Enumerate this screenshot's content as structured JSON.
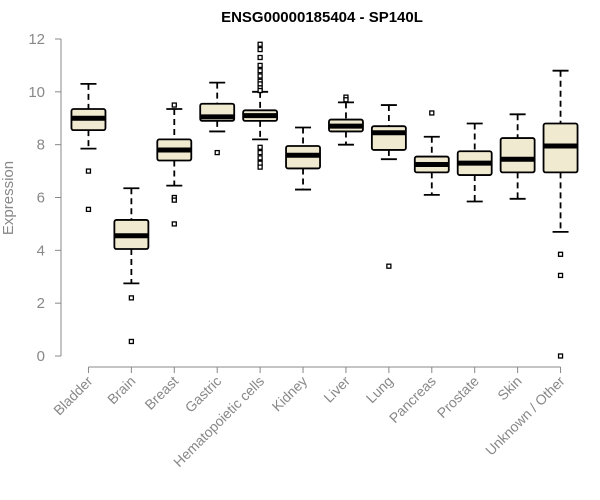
{
  "chart_data": {
    "type": "boxplot",
    "title": "ENSG00000185404 - SP140L",
    "xlabel": "",
    "ylabel": "Expression",
    "ylim": [
      0,
      12
    ],
    "yticks": [
      0,
      2,
      4,
      6,
      8,
      10,
      12
    ],
    "grid": false,
    "categories": [
      "Bladder",
      "Brain",
      "Breast",
      "Gastric",
      "Hematopoietic cells",
      "Kidney",
      "Liver",
      "Lung",
      "Pancreas",
      "Prostate",
      "Skin",
      "Unknown / Other"
    ],
    "box_fill": "#f0ead0",
    "series": [
      {
        "whisker_low": 7.85,
        "q1": 8.55,
        "median": 9.0,
        "q3": 9.35,
        "whisker_high": 10.3,
        "outliers": [
          7.0,
          5.55
        ]
      },
      {
        "whisker_low": 2.75,
        "q1": 4.05,
        "median": 4.55,
        "q3": 5.15,
        "whisker_high": 6.35,
        "outliers": [
          2.2,
          0.55
        ]
      },
      {
        "whisker_low": 6.45,
        "q1": 7.4,
        "median": 7.8,
        "q3": 8.2,
        "whisker_high": 9.35,
        "outliers": [
          9.5,
          6.0,
          5.9,
          5.0
        ]
      },
      {
        "whisker_low": 8.5,
        "q1": 8.9,
        "median": 9.05,
        "q3": 9.55,
        "whisker_high": 10.35,
        "outliers": [
          7.7
        ]
      },
      {
        "whisker_low": 8.2,
        "q1": 8.9,
        "median": 9.1,
        "q3": 9.3,
        "whisker_high": 10.0,
        "outliers": [
          11.8,
          11.6,
          11.3,
          11.0,
          10.8,
          10.6,
          10.4,
          10.3,
          10.15,
          10.05,
          7.9,
          7.7,
          7.5,
          7.3,
          7.15
        ]
      },
      {
        "whisker_low": 6.3,
        "q1": 7.1,
        "median": 7.6,
        "q3": 7.95,
        "whisker_high": 8.65,
        "outliers": []
      },
      {
        "whisker_low": 8.0,
        "q1": 8.5,
        "median": 8.7,
        "q3": 8.95,
        "whisker_high": 9.6,
        "outliers": [
          9.8,
          9.7
        ]
      },
      {
        "whisker_low": 7.45,
        "q1": 7.8,
        "median": 8.45,
        "q3": 8.7,
        "whisker_high": 9.5,
        "outliers": [
          3.4
        ]
      },
      {
        "whisker_low": 6.1,
        "q1": 6.95,
        "median": 7.25,
        "q3": 7.55,
        "whisker_high": 8.3,
        "outliers": [
          9.2
        ]
      },
      {
        "whisker_low": 5.85,
        "q1": 6.85,
        "median": 7.3,
        "q3": 7.75,
        "whisker_high": 8.8,
        "outliers": []
      },
      {
        "whisker_low": 5.95,
        "q1": 6.95,
        "median": 7.45,
        "q3": 8.25,
        "whisker_high": 9.15,
        "outliers": []
      },
      {
        "whisker_low": 4.7,
        "q1": 6.95,
        "median": 7.95,
        "q3": 8.8,
        "whisker_high": 10.8,
        "outliers": [
          3.85,
          3.05,
          0.0
        ]
      }
    ]
  }
}
